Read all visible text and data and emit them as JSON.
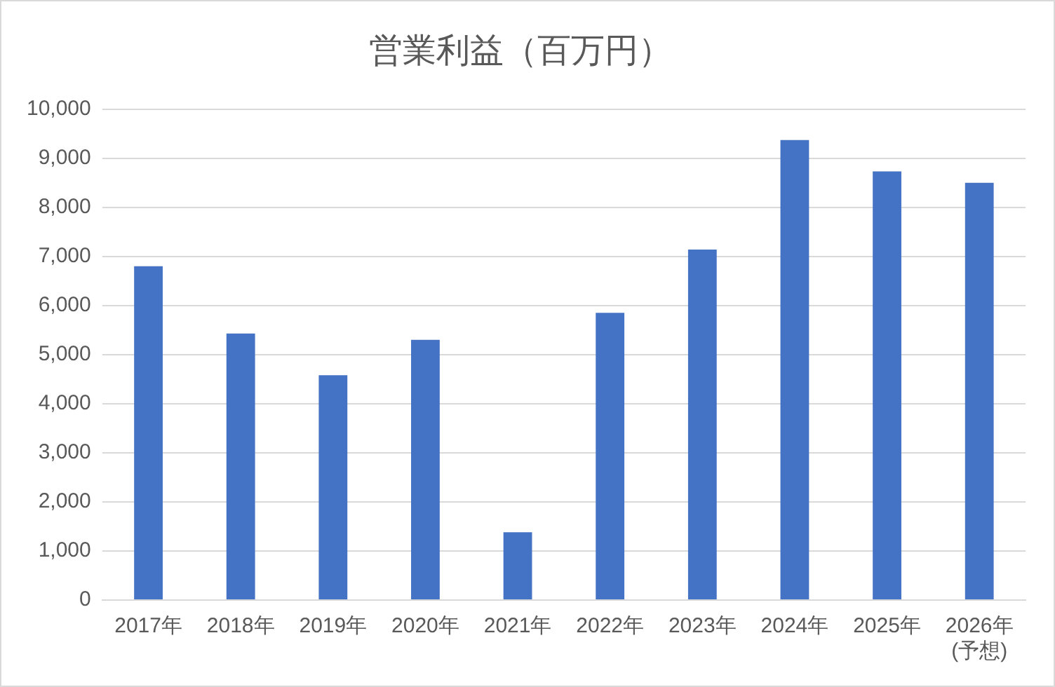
{
  "chart_data": {
    "type": "bar",
    "title": "営業利益（百万円）",
    "categories": [
      "2017年",
      "2018年",
      "2019年",
      "2020年",
      "2021年",
      "2022年",
      "2023年",
      "2024年",
      "2025年",
      "2026年\n(予想)"
    ],
    "values": [
      6800,
      5430,
      4580,
      5300,
      1380,
      5850,
      7140,
      9370,
      8730,
      8500
    ],
    "color": "#4472c4",
    "ylim": [
      0,
      10000
    ],
    "yticks": [
      {
        "value": 0,
        "label": "0"
      },
      {
        "value": 1000,
        "label": "1,000"
      },
      {
        "value": 2000,
        "label": "2,000"
      },
      {
        "value": 3000,
        "label": "3,000"
      },
      {
        "value": 4000,
        "label": "4,000"
      },
      {
        "value": 5000,
        "label": "5,000"
      },
      {
        "value": 6000,
        "label": "6,000"
      },
      {
        "value": 7000,
        "label": "7,000"
      },
      {
        "value": 8000,
        "label": "8,000"
      },
      {
        "value": 9000,
        "label": "9,000"
      },
      {
        "value": 10000,
        "label": "10,000"
      }
    ],
    "grid": "y"
  }
}
